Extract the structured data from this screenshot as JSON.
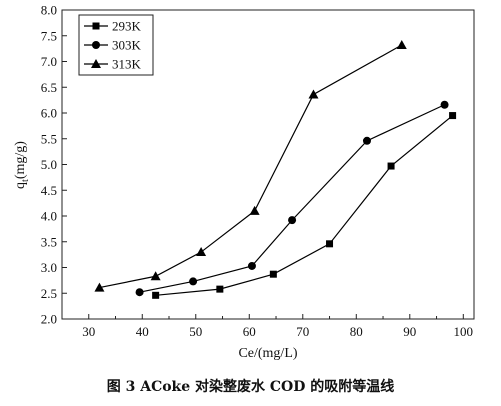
{
  "caption": "图 3   ACoke 对染整废水 COD 的吸附等温线",
  "chart_data": {
    "type": "line",
    "xlabel": "Ce/(mg/L)",
    "ylabel": "qt(mg/g)",
    "ylabel_main": "q",
    "ylabel_sub": "t",
    "ylabel_rest": "(mg/g)",
    "xlim": [
      25,
      102
    ],
    "ylim": [
      2.0,
      8.0
    ],
    "xticks": [
      30,
      40,
      50,
      60,
      70,
      80,
      90,
      100
    ],
    "yticks": [
      "2.0",
      "2.5",
      "3.0",
      "3.5",
      "4.0",
      "4.5",
      "5.0",
      "5.5",
      "6.0",
      "6.5",
      "7.0",
      "7.5",
      "8.0"
    ],
    "legend_position": "top-left",
    "series": [
      {
        "name": "293K",
        "marker": "square",
        "x": [
          42.5,
          54.5,
          64.5,
          75,
          86.5,
          98
        ],
        "y": [
          2.46,
          2.58,
          2.87,
          3.46,
          4.97,
          5.95
        ]
      },
      {
        "name": "303K",
        "marker": "circle",
        "x": [
          39.5,
          49.5,
          60.5,
          68,
          82,
          96.5
        ],
        "y": [
          2.52,
          2.73,
          3.03,
          3.92,
          5.46,
          6.16
        ]
      },
      {
        "name": "313K",
        "marker": "triangle",
        "x": [
          32,
          42.5,
          51,
          61,
          72,
          88.5
        ],
        "y": [
          2.61,
          2.83,
          3.3,
          4.1,
          6.36,
          7.32
        ]
      }
    ]
  }
}
